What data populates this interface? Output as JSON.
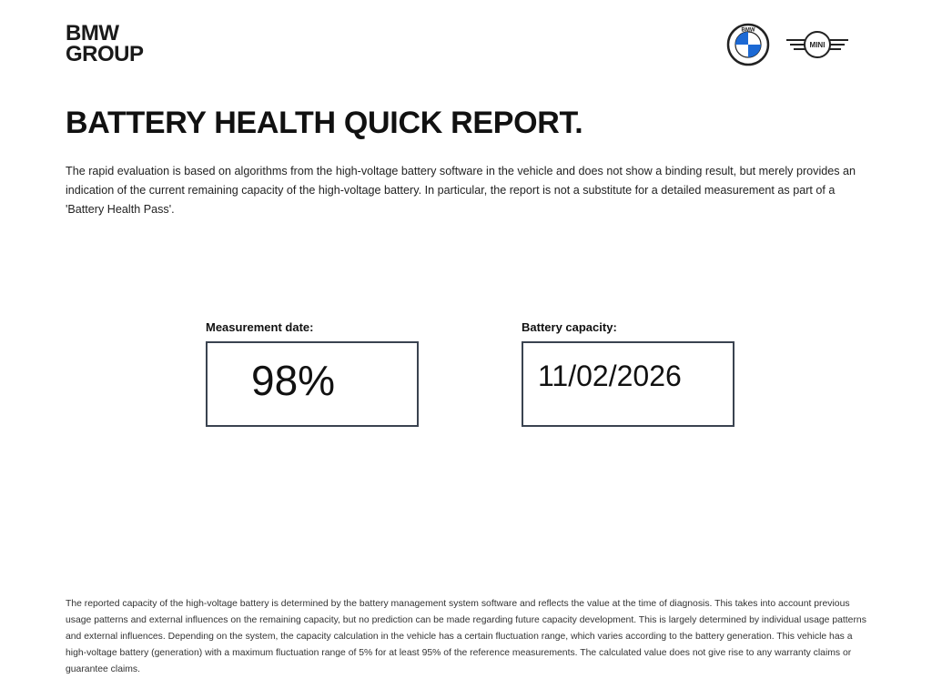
{
  "brand": {
    "line1": "BMW",
    "line2": "GROUP"
  },
  "logos": {
    "bmw": "bmw-roundel-logo",
    "bmw_text": "BMW",
    "mini": "mini-wings-logo",
    "mini_text": "MINI",
    "bmw_blue": "#1c69d4"
  },
  "title": "BATTERY HEALTH QUICK REPORT.",
  "intro": "The rapid evaluation is based on algorithms from the high-voltage battery software in the vehicle and does not show a binding result, but merely provides an indication of the current remaining capacity of the high-voltage battery. In particular, the report is not a substitute for a detailed measurement as part of a 'Battery Health Pass'.",
  "fields": [
    {
      "label": "Measurement date:",
      "value": "98%"
    },
    {
      "label": "Battery capacity:",
      "value": "11/02/2026"
    }
  ],
  "footer": "The reported capacity of the high-voltage battery is determined by the battery management system software and reflects the value at the time of diagnosis. This takes into account previous usage patterns and external influences on the remaining capacity, but no prediction can be made regarding future capacity development. This is largely determined by individual usage patterns and external influences. Depending on the system, the capacity calculation in the vehicle has a certain fluctuation range, which varies according to the battery generation. This vehicle has a high-voltage battery (generation) with a maximum fluctuation range of 5% for at least 95% of the reference measurements. The calculated value does not give rise to any warranty claims or guarantee claims."
}
